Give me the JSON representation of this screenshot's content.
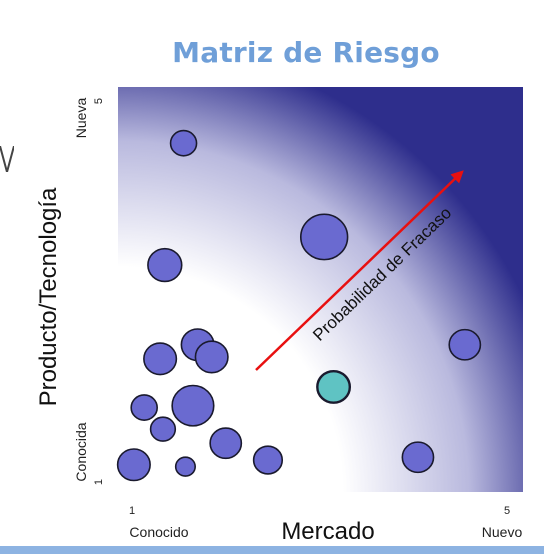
{
  "title": "Matriz de Riesgo",
  "colors": {
    "title": "#6f9fd8",
    "bubble_fill": "#6a6ad0",
    "bubble_stroke": "#1a1a2e",
    "highlight_fill": "#5fc3c3",
    "arrow": "#e81010",
    "gradient_dark": "#2e2e8c",
    "bottom_bar": "#8db3e2"
  },
  "chart_data": {
    "type": "scatter",
    "title": "Matriz de Riesgo",
    "xlabel": "Mercado",
    "ylabel": "Producto/Tecnología",
    "xlim": [
      1,
      5
    ],
    "ylim": [
      1,
      5
    ],
    "x_ticks": [
      "1",
      "5"
    ],
    "y_ticks": [
      "1",
      "5"
    ],
    "x_ends": {
      "low": "Conocido",
      "high": "Nuevo"
    },
    "y_ends": {
      "low": "Conocida",
      "high": "Nueva"
    },
    "annotation": "Probabilidad de Fracaso",
    "series": [
      {
        "points": [
          {
            "x": 1.55,
            "y": 4.55,
            "size": 1.0
          },
          {
            "x": 3.05,
            "y": 3.55,
            "size": 1.8
          },
          {
            "x": 1.35,
            "y": 3.25,
            "size": 1.3
          },
          {
            "x": 1.7,
            "y": 2.4,
            "size": 1.25
          },
          {
            "x": 1.85,
            "y": 2.27,
            "size": 1.25
          },
          {
            "x": 1.3,
            "y": 2.25,
            "size": 1.25
          },
          {
            "x": 4.55,
            "y": 2.4,
            "size": 1.2
          },
          {
            "x": 1.13,
            "y": 1.73,
            "size": 1.0
          },
          {
            "x": 1.65,
            "y": 1.75,
            "size": 1.6
          },
          {
            "x": 1.33,
            "y": 1.5,
            "size": 0.95
          },
          {
            "x": 2.0,
            "y": 1.35,
            "size": 1.2
          },
          {
            "x": 2.45,
            "y": 1.17,
            "size": 1.1
          },
          {
            "x": 1.02,
            "y": 1.12,
            "size": 1.25
          },
          {
            "x": 1.57,
            "y": 1.1,
            "size": 0.75
          },
          {
            "x": 4.05,
            "y": 1.2,
            "size": 1.2
          }
        ]
      },
      {
        "highlighted": true,
        "points": [
          {
            "x": 3.15,
            "y": 1.95,
            "size": 1.25
          }
        ]
      }
    ]
  }
}
